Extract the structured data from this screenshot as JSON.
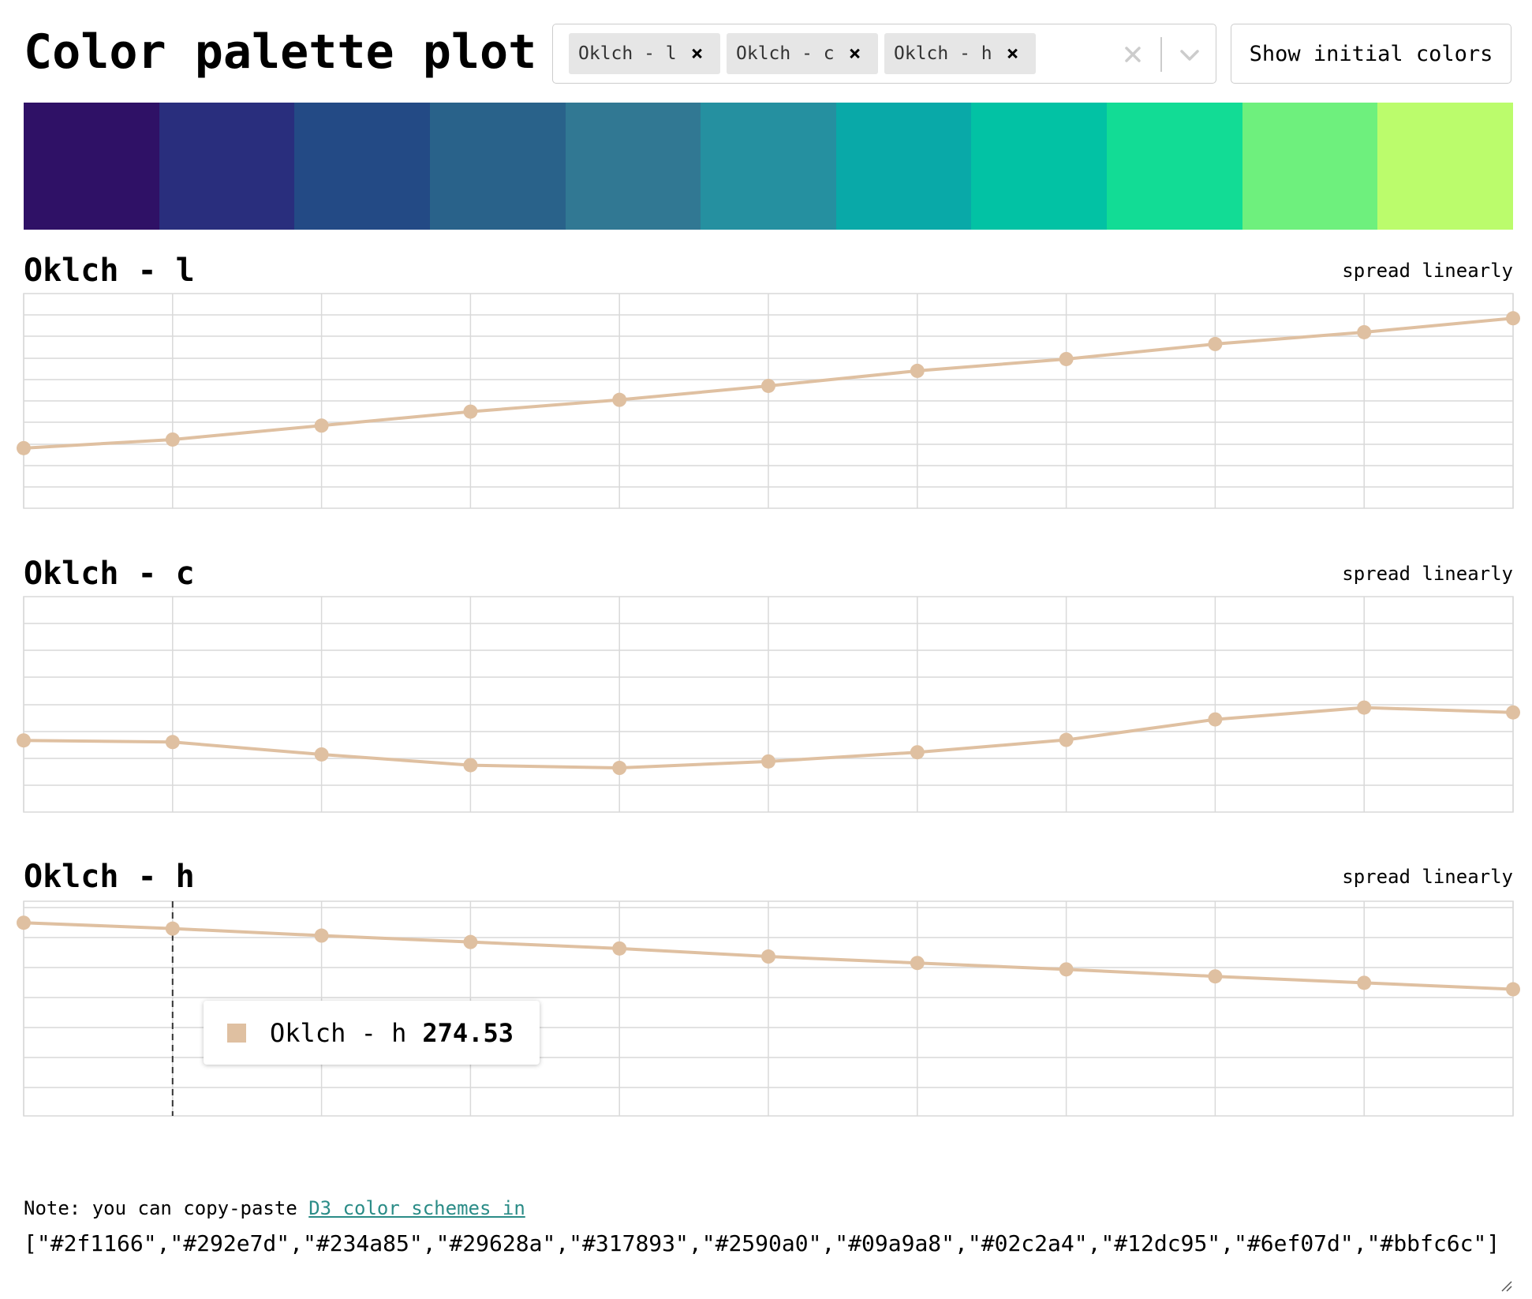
{
  "header": {
    "title": "Color palette plot",
    "show_initial_label": "Show initial colors"
  },
  "selector": {
    "chips": [
      {
        "label": "Oklch - l"
      },
      {
        "label": "Oklch - c"
      },
      {
        "label": "Oklch - h"
      }
    ],
    "clear_icon": "close-icon",
    "dropdown_icon": "chevron-down-icon"
  },
  "palette": [
    "#2f1166",
    "#292e7d",
    "#234a85",
    "#29628a",
    "#317893",
    "#2590a0",
    "#09a9a8",
    "#02c2a4",
    "#12dc95",
    "#6ef07d",
    "#bbfc6c"
  ],
  "colors": {
    "line": "#dfc0a1",
    "grid": "#d9d9d9",
    "link": "#2b8c87"
  },
  "charts": [
    {
      "title": "Oklch - l",
      "spread_label": "spread linearly"
    },
    {
      "title": "Oklch - c",
      "spread_label": "spread linearly"
    },
    {
      "title": "Oklch - h",
      "spread_label": "spread linearly"
    }
  ],
  "tooltip": {
    "label": "Oklch - h",
    "value": "274.53"
  },
  "note": {
    "prefix": "Note: you can copy-paste ",
    "link_text": "D3 color schemes in"
  },
  "output": "[\"#2f1166\",\"#292e7d\",\"#234a85\",\"#29628a\",\"#317893\",\"#2590a0\",\"#09a9a8\",\"#02c2a4\",\"#12dc95\",\"#6ef07d\",\"#bbfc6c\"]",
  "chart_data": [
    {
      "type": "line",
      "title": "Oklch - l",
      "x": [
        0,
        1,
        2,
        3,
        4,
        5,
        6,
        7,
        8,
        9,
        10
      ],
      "values": [
        0.28,
        0.32,
        0.385,
        0.45,
        0.505,
        0.57,
        0.64,
        0.695,
        0.765,
        0.82,
        0.885
      ],
      "ylim": [
        0,
        1
      ]
    },
    {
      "type": "line",
      "title": "Oklch - c",
      "x": [
        0,
        1,
        2,
        3,
        4,
        5,
        6,
        7,
        8,
        9,
        10
      ],
      "values": [
        0.133,
        0.13,
        0.107,
        0.087,
        0.082,
        0.094,
        0.111,
        0.134,
        0.172,
        0.194,
        0.185
      ],
      "ylim": [
        0,
        0.4
      ]
    },
    {
      "type": "line",
      "title": "Oklch - h",
      "x": [
        0,
        1,
        2,
        3,
        4,
        5,
        6,
        7,
        8,
        9,
        10
      ],
      "values": [
        280.0,
        274.53,
        268.0,
        262.0,
        256.0,
        248.5,
        242.5,
        236.5,
        230.0,
        224.0,
        218.0
      ],
      "ylim": [
        100,
        300
      ]
    }
  ]
}
